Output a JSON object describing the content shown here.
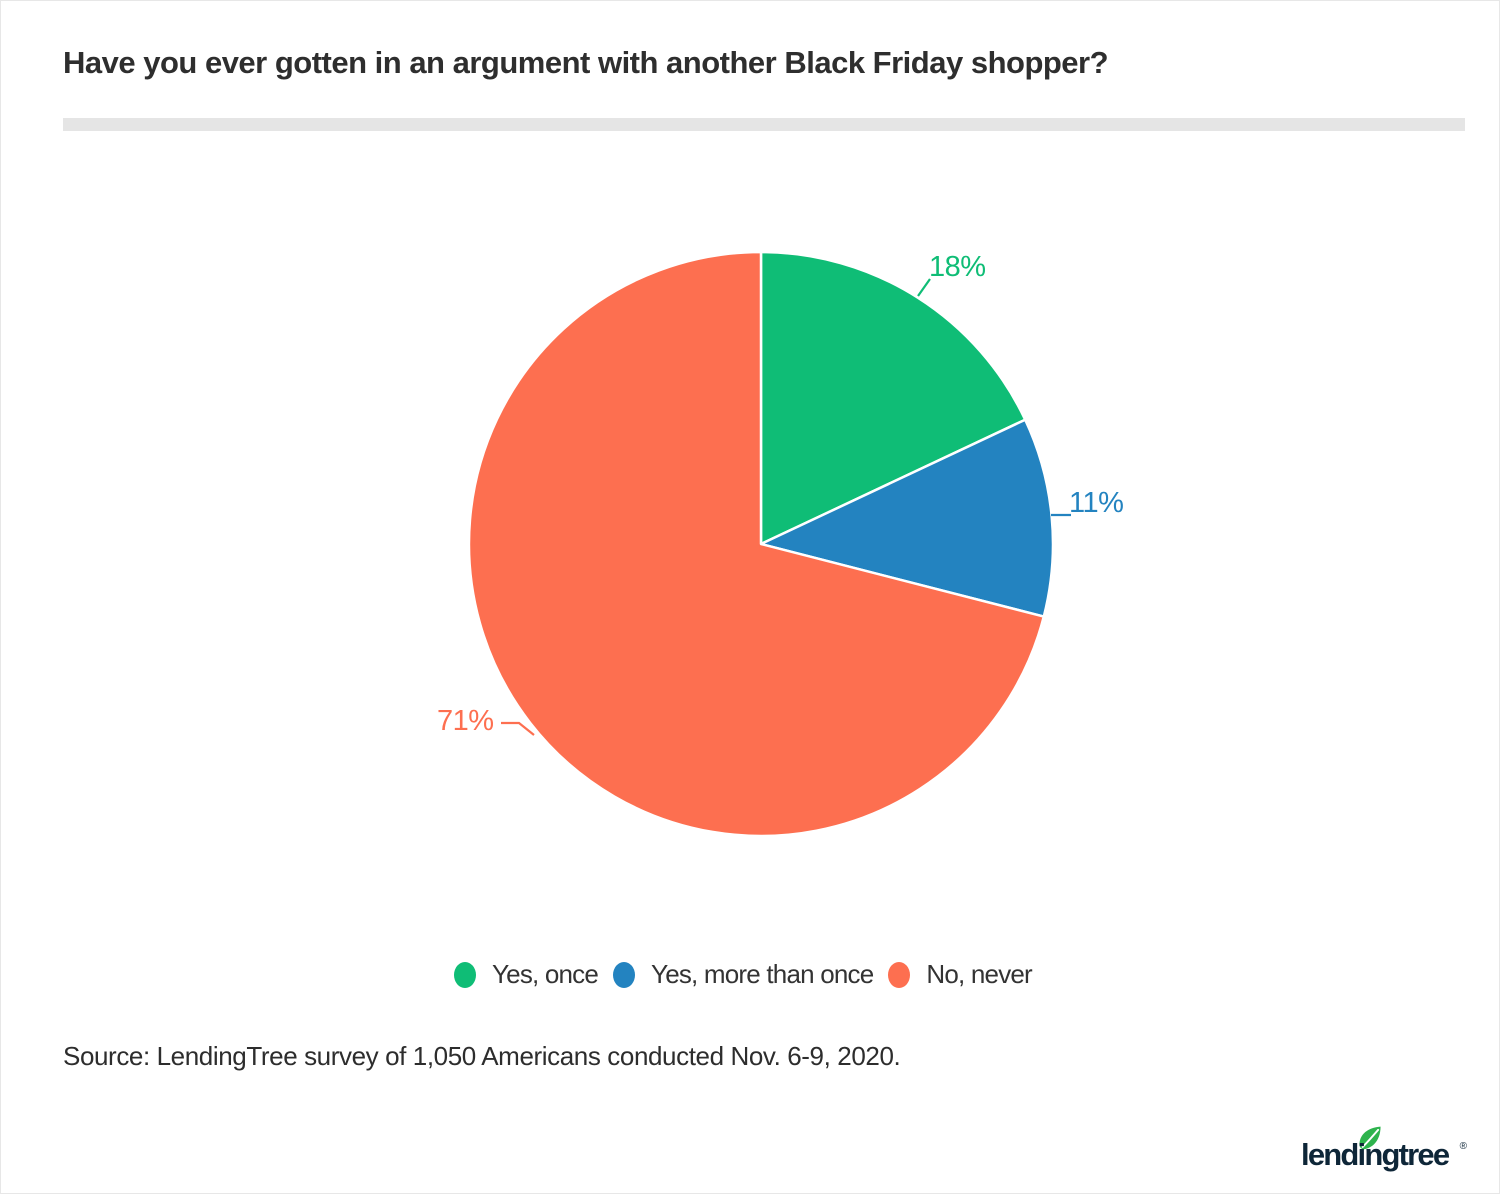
{
  "page": {
    "title": "Have you ever gotten in an argument with another Black Friday shopper?",
    "source": "Source: LendingTree survey of 1,050 Americans conducted Nov. 6-9, 2020."
  },
  "chart_data": {
    "type": "pie",
    "title": "Have you ever gotten in an argument with another Black Friday shopper?",
    "start_angle_deg": 0,
    "direction": "clockwise",
    "legend_position": "bottom",
    "slices": [
      {
        "label": "Yes, once",
        "value": 18,
        "display_label": "18%",
        "color": "#0fbd76"
      },
      {
        "label": "Yes, more than once",
        "value": 11,
        "display_label": "11%",
        "color": "#2383c0"
      },
      {
        "label": "No, never",
        "value": 71,
        "display_label": "71%",
        "color": "#fd6f50"
      }
    ]
  },
  "logo": {
    "wordmark": "lendingtree",
    "registered": "®",
    "leaf_color": "#2eb34d",
    "text_color": "#0e2638"
  },
  "styles": {
    "divider_color": "#e5e5e5",
    "title_color": "#2e2e2e",
    "legend_text_color": "#333333"
  }
}
